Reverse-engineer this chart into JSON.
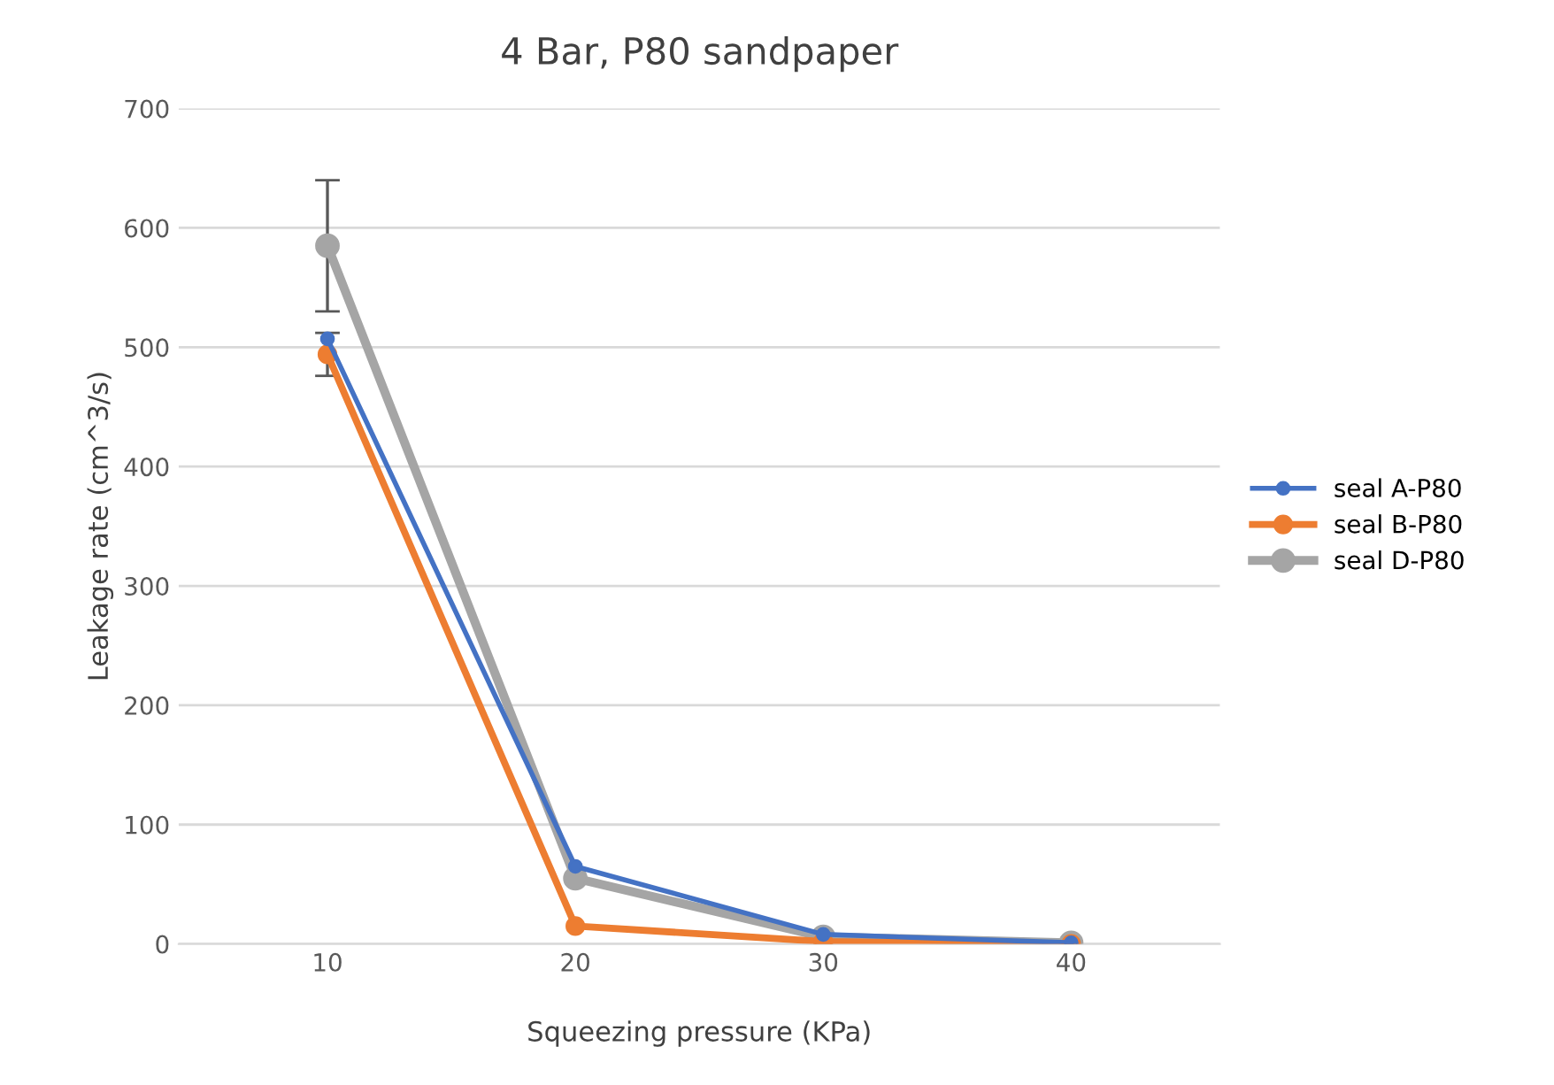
{
  "chart_data": {
    "type": "line",
    "title": "4 Bar, P80 sandpaper",
    "xlabel": "Squeezing pressure (KPa)",
    "ylabel": "Leakage rate (cm^3/s)",
    "categories": [
      "10",
      "20",
      "30",
      "40"
    ],
    "series": [
      {
        "name": "seal A-P80",
        "color": "#4472c4",
        "values": [
          507,
          65,
          8,
          1
        ]
      },
      {
        "name": "seal B-P80",
        "color": "#ed7d31",
        "values": [
          494,
          15,
          2,
          0
        ],
        "errors": [
          18,
          null,
          null,
          null
        ]
      },
      {
        "name": "seal D-P80",
        "color": "#a5a5a5",
        "values": [
          585,
          55,
          6,
          1
        ],
        "errors": [
          [
            530,
            640
          ],
          null,
          null,
          null
        ]
      }
    ],
    "ylim": [
      0,
      700
    ],
    "yticks": [
      0,
      100,
      200,
      300,
      400,
      500,
      600,
      700
    ],
    "grid": "y",
    "legend": "right",
    "marker": "circle",
    "line_style": "solid"
  }
}
